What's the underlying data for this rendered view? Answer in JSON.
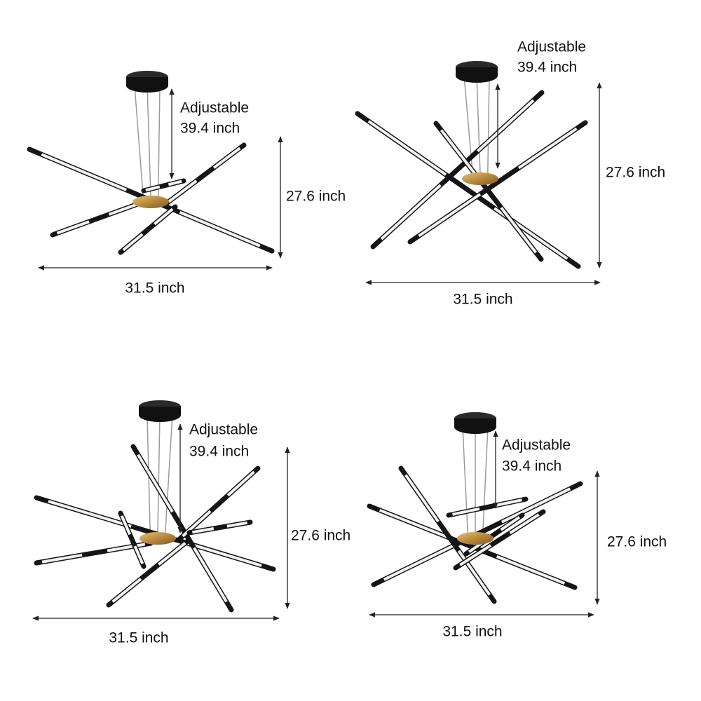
{
  "panels": [
    {
      "adjustable_label": "Adjustable",
      "adjustable_value": "39.4 inch",
      "height": "27.6 inch",
      "width": "31.5 inch"
    },
    {
      "adjustable_label": "Adjustable",
      "adjustable_value": "39.4 inch",
      "height": "27.6 inch",
      "width": "31.5 inch"
    },
    {
      "adjustable_label": "Adjustable",
      "adjustable_value": "39.4 inch",
      "height": "27.6 inch",
      "width": "31.5 inch"
    },
    {
      "adjustable_label": "Adjustable",
      "adjustable_value": "39.4 inch",
      "height": "27.6 inch",
      "width": "31.5 inch"
    }
  ]
}
